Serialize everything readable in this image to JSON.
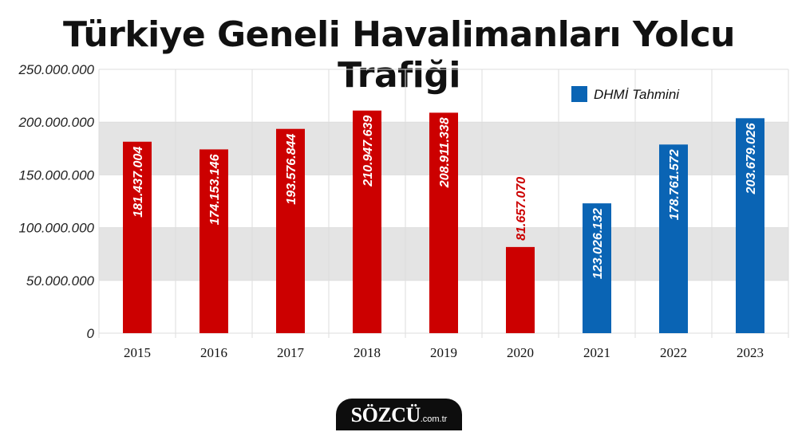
{
  "chart_data": {
    "type": "bar",
    "title": "Türkiye Geneli Havalimanları Yolcu Trafiği",
    "categories": [
      "2015",
      "2016",
      "2017",
      "2018",
      "2019",
      "2020",
      "2021",
      "2022",
      "2023"
    ],
    "values": [
      181437004,
      174153146,
      193576844,
      210947639,
      208911338,
      81657070,
      123026132,
      178761572,
      203679026
    ],
    "value_labels": [
      "181.437.004",
      "174.153.146",
      "193.576.844",
      "210.947.639",
      "208.911.338",
      "81.657.070",
      "123.026.132",
      "178.761.572",
      "203.679.026"
    ],
    "bar_colors": [
      "#cc0000",
      "#cc0000",
      "#cc0000",
      "#cc0000",
      "#cc0000",
      "#cc0000",
      "#0a64b4",
      "#0a64b4",
      "#0a64b4"
    ],
    "ylim": [
      0,
      250000000
    ],
    "yticks": [
      0,
      50000000,
      100000000,
      150000000,
      200000000,
      250000000
    ],
    "ytick_labels": [
      "0",
      "50.000.000",
      "100.000.000",
      "150.000.000",
      "200.000.000",
      "250.000.000"
    ],
    "legend": [
      {
        "label": "DHMİ Tahmini",
        "color": "#0a64b4"
      }
    ],
    "legend_position": "top-right",
    "grid": true
  },
  "logo": {
    "main": "SÖZCÜ",
    "domain": ".com.tr"
  },
  "colors": {
    "red": "#cc0000",
    "blue": "#0a64b4",
    "band": "#e4e4e4",
    "grid": "#dddddd"
  }
}
